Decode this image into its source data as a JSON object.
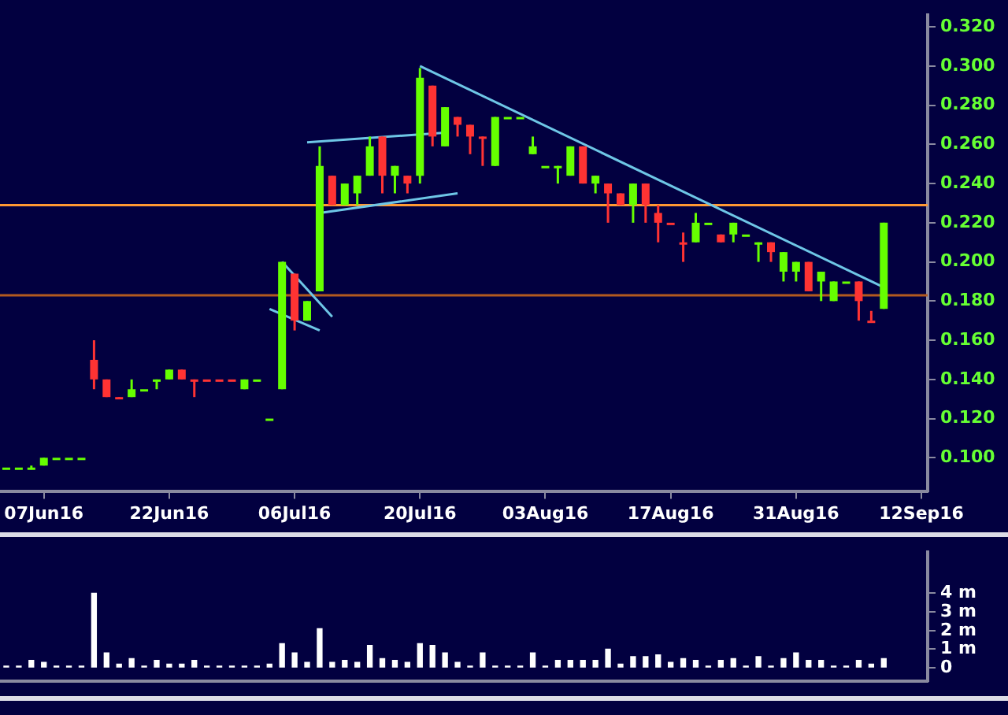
{
  "chart_data": [
    {
      "type": "candlestick",
      "categories": [
        null,
        null,
        null,
        "07Jun16",
        null,
        null,
        null,
        null,
        null,
        null,
        null,
        null,
        null,
        "22Jun16",
        null,
        null,
        null,
        null,
        null,
        null,
        null,
        null,
        null,
        "06Jul16",
        null,
        null,
        null,
        null,
        null,
        null,
        null,
        null,
        null,
        "20Jul16",
        null,
        null,
        null,
        null,
        null,
        null,
        null,
        null,
        null,
        "03Aug16",
        null,
        null,
        null,
        null,
        null,
        null,
        null,
        null,
        null,
        "17Aug16",
        null,
        null,
        null,
        null,
        null,
        null,
        null,
        null,
        null,
        "31Aug16",
        null,
        null,
        null,
        null,
        null,
        null,
        null,
        null,
        null,
        "12Sep16"
      ],
      "ohlc": [
        [
          0.095,
          0.095,
          0.095,
          0.095
        ],
        [
          0.095,
          0.095,
          0.095,
          0.095
        ],
        [
          0.094,
          0.096,
          0.094,
          0.095
        ],
        [
          0.096,
          0.1,
          0.096,
          0.1
        ],
        [
          0.1,
          0.1,
          0.1,
          0.1
        ],
        [
          0.1,
          0.1,
          0.1,
          0.1
        ],
        [
          0.1,
          0.1,
          0.1,
          0.1
        ],
        [
          0.15,
          0.16,
          0.135,
          0.14
        ],
        [
          0.14,
          0.14,
          0.131,
          0.131
        ],
        [
          0.131,
          0.131,
          0.13,
          0.13
        ],
        [
          0.131,
          0.14,
          0.131,
          0.135
        ],
        [
          0.135,
          0.135,
          0.135,
          0.135
        ],
        [
          0.14,
          0.14,
          0.135,
          0.14
        ],
        [
          0.14,
          0.145,
          0.14,
          0.145
        ],
        [
          0.145,
          0.145,
          0.14,
          0.14
        ],
        [
          0.14,
          0.14,
          0.131,
          0.14
        ],
        [
          0.14,
          0.14,
          0.14,
          0.14
        ],
        [
          0.14,
          0.14,
          0.14,
          0.14
        ],
        [
          0.14,
          0.14,
          0.14,
          0.14
        ],
        [
          0.135,
          0.14,
          0.135,
          0.14
        ],
        [
          0.14,
          0.14,
          0.14,
          0.14
        ],
        [
          0.12,
          0.12,
          0.12,
          0.12
        ],
        [
          0.135,
          0.2,
          0.135,
          0.2
        ],
        [
          0.194,
          0.194,
          0.165,
          0.17
        ],
        [
          0.17,
          0.18,
          0.17,
          0.18
        ],
        [
          0.185,
          0.259,
          0.185,
          0.249
        ],
        [
          0.244,
          0.244,
          0.229,
          0.229
        ],
        [
          0.229,
          0.24,
          0.229,
          0.24
        ],
        [
          0.235,
          0.244,
          0.229,
          0.244
        ],
        [
          0.244,
          0.264,
          0.244,
          0.259
        ],
        [
          0.264,
          0.264,
          0.235,
          0.244
        ],
        [
          0.244,
          0.249,
          0.235,
          0.249
        ],
        [
          0.244,
          0.244,
          0.235,
          0.24
        ],
        [
          0.244,
          0.299,
          0.24,
          0.294
        ],
        [
          0.29,
          0.29,
          0.259,
          0.264
        ],
        [
          0.259,
          0.279,
          0.259,
          0.279
        ],
        [
          0.274,
          0.274,
          0.264,
          0.27
        ],
        [
          0.27,
          0.27,
          0.255,
          0.264
        ],
        [
          0.264,
          0.264,
          0.249,
          0.264
        ],
        [
          0.249,
          0.274,
          0.249,
          0.274
        ],
        [
          0.274,
          0.274,
          0.274,
          0.274
        ],
        [
          0.274,
          0.274,
          0.274,
          0.274
        ],
        [
          0.255,
          0.264,
          0.255,
          0.259
        ],
        [
          0.249,
          0.249,
          0.249,
          0.249
        ],
        [
          0.249,
          0.249,
          0.24,
          0.249
        ],
        [
          0.244,
          0.259,
          0.244,
          0.259
        ],
        [
          0.259,
          0.259,
          0.24,
          0.24
        ],
        [
          0.24,
          0.244,
          0.235,
          0.244
        ],
        [
          0.24,
          0.24,
          0.22,
          0.235
        ],
        [
          0.235,
          0.235,
          0.229,
          0.229
        ],
        [
          0.229,
          0.24,
          0.22,
          0.24
        ],
        [
          0.24,
          0.24,
          0.22,
          0.229
        ],
        [
          0.225,
          0.229,
          0.21,
          0.22
        ],
        [
          0.22,
          0.22,
          0.22,
          0.22
        ],
        [
          0.21,
          0.215,
          0.2,
          0.21
        ],
        [
          0.21,
          0.225,
          0.21,
          0.22
        ],
        [
          0.22,
          0.22,
          0.22,
          0.22
        ],
        [
          0.214,
          0.214,
          0.21,
          0.21
        ],
        [
          0.214,
          0.22,
          0.21,
          0.22
        ],
        [
          0.214,
          0.214,
          0.214,
          0.214
        ],
        [
          0.21,
          0.21,
          0.2,
          0.21
        ],
        [
          0.21,
          0.21,
          0.2,
          0.205
        ],
        [
          0.195,
          0.205,
          0.19,
          0.205
        ],
        [
          0.195,
          0.2,
          0.19,
          0.2
        ],
        [
          0.2,
          0.2,
          0.185,
          0.185
        ],
        [
          0.19,
          0.195,
          0.18,
          0.195
        ],
        [
          0.18,
          0.19,
          0.18,
          0.19
        ],
        [
          0.19,
          0.19,
          0.19,
          0.19
        ],
        [
          0.19,
          0.19,
          0.17,
          0.18
        ],
        [
          0.17,
          0.175,
          0.17,
          0.17
        ],
        [
          0.176,
          0.22,
          0.176,
          0.22
        ],
        null,
        null,
        null
      ],
      "colors": [
        "#66ff00",
        "#66ff00",
        "#66ff00",
        "#66ff00",
        "#66ff00",
        "#66ff00",
        "#66ff00",
        "#ff3333",
        "#ff3333",
        "#ff3333",
        "#66ff00",
        "#66ff00",
        "#66ff00",
        "#66ff00",
        "#ff3333",
        "#ff3333",
        "#ff3333",
        "#ff3333",
        "#ff3333",
        "#66ff00",
        "#66ff00",
        "#66ff00",
        "#66ff00",
        "#ff3333",
        "#66ff00",
        "#66ff00",
        "#ff3333",
        "#66ff00",
        "#66ff00",
        "#66ff00",
        "#ff3333",
        "#66ff00",
        "#ff3333",
        "#66ff00",
        "#ff3333",
        "#66ff00",
        "#ff3333",
        "#ff3333",
        "#ff3333",
        "#66ff00",
        "#66ff00",
        "#66ff00",
        "#66ff00",
        "#66ff00",
        "#66ff00",
        "#66ff00",
        "#ff3333",
        "#66ff00",
        "#ff3333",
        "#ff3333",
        "#66ff00",
        "#ff3333",
        "#ff3333",
        "#ff3333",
        "#ff3333",
        "#66ff00",
        "#66ff00",
        "#ff3333",
        "#66ff00",
        "#66ff00",
        "#66ff00",
        "#ff3333",
        "#66ff00",
        "#66ff00",
        "#ff3333",
        "#66ff00",
        "#66ff00",
        "#66ff00",
        "#ff3333",
        "#ff3333",
        "#66ff00",
        null,
        null,
        null
      ],
      "series": [
        {
          "type": "line",
          "color": "#6ec6e6",
          "values": [
            null,
            null,
            null,
            null,
            null,
            null,
            null,
            null,
            null,
            null,
            null,
            null,
            null,
            null,
            null,
            null,
            null,
            null,
            null,
            null,
            null,
            null,
            null,
            null,
            null,
            null,
            null,
            null,
            null,
            null,
            null,
            null,
            null,
            0.3,
            null,
            null,
            null,
            null,
            null,
            null,
            null,
            null,
            null,
            null,
            null,
            null,
            null,
            null,
            null,
            null,
            null,
            null,
            null,
            null,
            null,
            null,
            null,
            null,
            null,
            null,
            null,
            null,
            null,
            null,
            null,
            null,
            null,
            null,
            null,
            null,
            0.187,
            null,
            null,
            null
          ]
        },
        {
          "type": "line",
          "color": "#6ec6e6",
          "values": [
            null,
            null,
            null,
            null,
            null,
            null,
            null,
            null,
            null,
            null,
            null,
            null,
            null,
            null,
            null,
            null,
            null,
            null,
            null,
            null,
            null,
            null,
            null,
            null,
            0.261,
            null,
            null,
            null,
            null,
            null,
            null,
            null,
            null,
            null,
            null,
            0.266,
            null,
            null,
            null,
            null,
            null,
            null,
            null,
            null,
            null,
            null,
            null,
            null,
            null,
            null,
            null,
            null,
            null,
            null,
            null,
            null,
            null,
            null,
            null,
            null,
            null,
            null,
            null,
            null,
            null,
            null,
            null,
            null,
            null,
            null,
            null,
            null,
            null,
            null
          ]
        },
        {
          "type": "line",
          "color": "#6ec6e6",
          "values": [
            null,
            null,
            null,
            null,
            null,
            null,
            null,
            null,
            null,
            null,
            null,
            null,
            null,
            null,
            null,
            null,
            null,
            null,
            null,
            null,
            null,
            null,
            null,
            null,
            null,
            0.225,
            null,
            null,
            null,
            null,
            null,
            null,
            null,
            null,
            null,
            null,
            0.235,
            null,
            null,
            null,
            null,
            null,
            null,
            null,
            null,
            null,
            null,
            null,
            null,
            null,
            null,
            null,
            null,
            null,
            null,
            null,
            null,
            null,
            null,
            null,
            null,
            null,
            null,
            null,
            null,
            null,
            null,
            null,
            null,
            null,
            null,
            null,
            null,
            null
          ]
        },
        {
          "type": "line",
          "color": "#6ec6e6",
          "values": [
            null,
            null,
            null,
            null,
            null,
            null,
            null,
            null,
            null,
            null,
            null,
            null,
            null,
            null,
            null,
            null,
            null,
            null,
            null,
            null,
            null,
            null,
            0.2,
            null,
            null,
            null,
            0.172,
            null,
            null,
            null,
            null,
            null,
            null,
            null,
            null,
            null,
            null,
            null,
            null,
            null,
            null,
            null,
            null,
            null,
            null,
            null,
            null,
            null,
            null,
            null,
            null,
            null,
            null,
            null,
            null,
            null,
            null,
            null,
            null,
            null,
            null,
            null,
            null,
            null,
            null,
            null,
            null,
            null,
            null,
            null,
            null,
            null,
            null,
            null
          ]
        },
        {
          "type": "line",
          "color": "#6ec6e6",
          "values": [
            null,
            null,
            null,
            null,
            null,
            null,
            null,
            null,
            null,
            null,
            null,
            null,
            null,
            null,
            null,
            null,
            null,
            null,
            null,
            null,
            null,
            0.176,
            null,
            null,
            null,
            0.165,
            null,
            null,
            null,
            null,
            null,
            null,
            null,
            null,
            null,
            null,
            null,
            null,
            null,
            null,
            null,
            null,
            null,
            null,
            null,
            null,
            null,
            null,
            null,
            null,
            null,
            null,
            null,
            null,
            null,
            null,
            null,
            null,
            null,
            null,
            null,
            null,
            null,
            null,
            null,
            null,
            null,
            null,
            null,
            null,
            null,
            null,
            null,
            null
          ]
        }
      ],
      "ref_lines": [
        {
          "axis": "y",
          "value": 0.229,
          "color": "#ff9933"
        },
        {
          "axis": "y",
          "value": 0.183,
          "color": "#b35a1f"
        }
      ],
      "ylim": [
        0.083,
        0.326
      ],
      "yticks": [
        {
          "value": 0.1,
          "label": "0.100"
        },
        {
          "value": 0.12,
          "label": "0.120"
        },
        {
          "value": 0.14,
          "label": "0.140"
        },
        {
          "value": 0.16,
          "label": "0.160"
        },
        {
          "value": 0.18,
          "label": "0.180"
        },
        {
          "value": 0.2,
          "label": "0.200"
        },
        {
          "value": 0.22,
          "label": "0.220"
        },
        {
          "value": 0.24,
          "label": "0.240"
        },
        {
          "value": 0.26,
          "label": "0.260"
        },
        {
          "value": 0.28,
          "label": "0.280"
        },
        {
          "value": 0.3,
          "label": "0.300"
        },
        {
          "value": 0.32,
          "label": "0.320"
        }
      ]
    },
    {
      "type": "bar",
      "categories": [
        null,
        null,
        null,
        null,
        null,
        null,
        null,
        null,
        null,
        null,
        null,
        null,
        null,
        null,
        null,
        null,
        null,
        null,
        null,
        null,
        null,
        null,
        null,
        null,
        null,
        null,
        null,
        null,
        null,
        null,
        null,
        null,
        null,
        null,
        null,
        null,
        null,
        null,
        null,
        null,
        null,
        null,
        null,
        null,
        null,
        null,
        null,
        null,
        null,
        null,
        null,
        null,
        null,
        null,
        null,
        null,
        null,
        null,
        null,
        null,
        null,
        null,
        null,
        null,
        null,
        null,
        null,
        null,
        null,
        null,
        null,
        null,
        null,
        null
      ],
      "values": [
        0.1,
        0.1,
        0.4,
        0.3,
        0.1,
        0.1,
        0.1,
        4.0,
        0.8,
        0.2,
        0.5,
        0.1,
        0.4,
        0.2,
        0.2,
        0.4,
        0.1,
        0.1,
        0.1,
        0.1,
        0.1,
        0.2,
        1.3,
        0.8,
        0.3,
        2.1,
        0.3,
        0.4,
        0.3,
        1.2,
        0.5,
        0.4,
        0.3,
        1.3,
        1.2,
        0.8,
        0.3,
        0.1,
        0.8,
        0.1,
        0.1,
        0.1,
        0.8,
        0.1,
        0.4,
        0.4,
        0.4,
        0.4,
        1.0,
        0.2,
        0.6,
        0.6,
        0.7,
        0.3,
        0.5,
        0.4,
        0.1,
        0.4,
        0.5,
        0.1,
        0.6,
        0.1,
        0.5,
        0.8,
        0.4,
        0.4,
        0.1,
        0.1,
        0.4,
        0.2,
        0.5,
        null,
        null,
        null
      ],
      "color": "#ffffff",
      "ylim": [
        -0.7,
        6.2
      ],
      "yticks": [
        0,
        {
          "value": 1,
          "label": "1 m"
        },
        {
          "value": 2,
          "label": "2 m"
        },
        {
          "value": 3,
          "label": "3 m"
        },
        {
          "value": 4,
          "label": "4 m"
        }
      ],
      "tick_labels": "y"
    }
  ]
}
